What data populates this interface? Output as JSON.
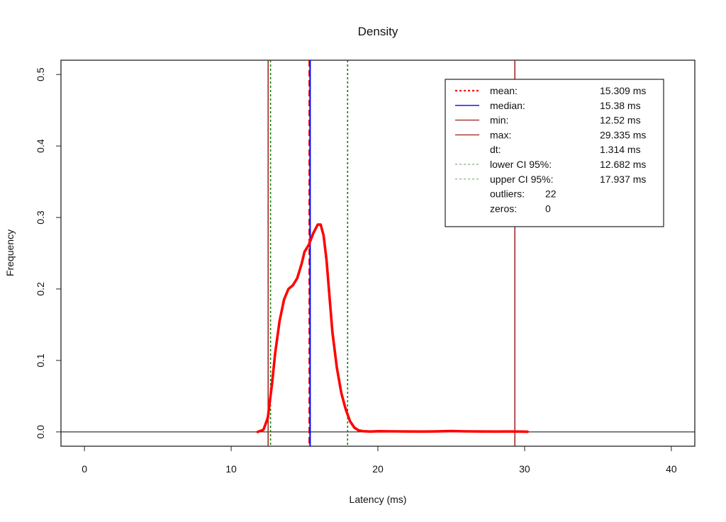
{
  "chart_data": {
    "type": "line",
    "title": "Density",
    "xlabel": "Latency (ms)",
    "ylabel": "Frequency",
    "xlim": [
      -1.6,
      41.6
    ],
    "ylim": [
      -0.02,
      0.52
    ],
    "x_ticks": [
      0,
      10,
      20,
      30,
      40
    ],
    "x_tick_labels": [
      "0",
      "10",
      "20",
      "30",
      "40"
    ],
    "y_ticks": [
      0.0,
      0.1,
      0.2,
      0.3,
      0.4,
      0.5
    ],
    "y_tick_labels": [
      "0.0",
      "0.1",
      "0.2",
      "0.3",
      "0.4",
      "0.5"
    ],
    "grid": false,
    "legend_position": "top-right",
    "series": [
      {
        "color": "#ff0000",
        "x": [
          11.8,
          12.2,
          12.5,
          12.8,
          13.0,
          13.3,
          13.6,
          13.9,
          14.2,
          14.5,
          14.8,
          15.0,
          15.3,
          15.6,
          15.9,
          16.1,
          16.3,
          16.5,
          16.7,
          16.9,
          17.2,
          17.5,
          17.8,
          18.1,
          18.4,
          18.7,
          19.0,
          19.5,
          20.0,
          21.0,
          22.0,
          23.0,
          24.0,
          25.0,
          26.0,
          27.0,
          28.0,
          29.0,
          30.0,
          30.2
        ],
        "y": [
          0.0,
          0.003,
          0.02,
          0.07,
          0.11,
          0.155,
          0.185,
          0.2,
          0.205,
          0.215,
          0.235,
          0.252,
          0.262,
          0.278,
          0.29,
          0.29,
          0.275,
          0.24,
          0.19,
          0.14,
          0.09,
          0.055,
          0.032,
          0.015,
          0.006,
          0.002,
          0.001,
          0.0005,
          0.001,
          0.0008,
          0.0006,
          0.0005,
          0.0007,
          0.0012,
          0.0008,
          0.0006,
          0.0005,
          0.0006,
          0.0004,
          0.0002
        ]
      }
    ],
    "zero_line": {
      "y": 0.0,
      "color": "#222222"
    },
    "vertical_lines": [
      {
        "name": "mean",
        "x": 15.309,
        "color": "#ff0000",
        "dash": "dashed"
      },
      {
        "name": "median",
        "x": 15.38,
        "color": "#0000ff",
        "dash": "solid"
      },
      {
        "name": "min",
        "x": 12.52,
        "color": "#a52a2a",
        "dash": "solid"
      },
      {
        "name": "max",
        "x": 29.335,
        "color": "#a52a2a",
        "dash": "solid"
      },
      {
        "name": "lower CI 95%",
        "x": 12.682,
        "color": "#008000",
        "dash": "dotted"
      },
      {
        "name": "upper CI 95%",
        "x": 17.937,
        "color": "#008000",
        "dash": "dotted"
      }
    ],
    "legend": [
      {
        "label": "mean:",
        "value": "15.309 ms",
        "color": "#ff0000",
        "dash": "dotted"
      },
      {
        "label": "median:",
        "value": "15.38 ms",
        "color": "#0000ff",
        "dash": "solid"
      },
      {
        "label": "min:",
        "value": "12.52 ms",
        "color": "#a52a2a",
        "dash": "solid"
      },
      {
        "label": "max:",
        "value": "29.335 ms",
        "color": "#a52a2a",
        "dash": "solid"
      },
      {
        "label": "dt:",
        "value": "1.314 ms",
        "color": "",
        "dash": "none"
      },
      {
        "label": "lower CI 95%:",
        "value": "12.682 ms",
        "color": "#8fbc8f",
        "dash": "dotted"
      },
      {
        "label": "upper CI 95%:",
        "value": "17.937 ms",
        "color": "#8fbc8f",
        "dash": "dotted"
      },
      {
        "label": "outliers:",
        "value": "22",
        "color": "",
        "dash": "none"
      },
      {
        "label": "zeros:",
        "value": "0",
        "color": "",
        "dash": "none"
      }
    ]
  }
}
